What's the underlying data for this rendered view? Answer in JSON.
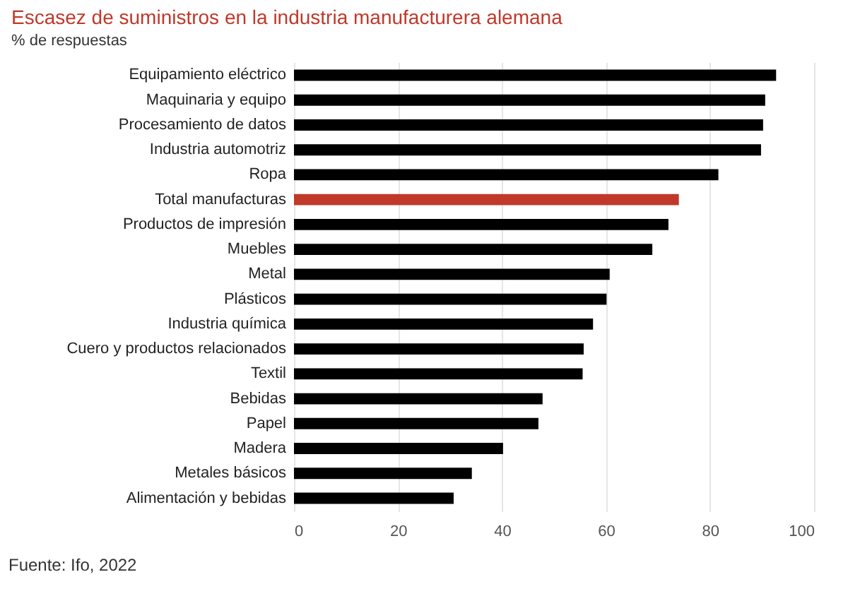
{
  "chart_data": {
    "type": "bar",
    "orientation": "horizontal",
    "title": "Escasez de suministros en la industria manufacturera alemana",
    "subtitle": "% de respuestas",
    "categories": [
      "Equipamiento eléctrico",
      "Maquinaria y equipo",
      "Procesamiento de datos",
      "Industria automotriz",
      "Ropa",
      "Total manufacturas",
      "Productos de impresión",
      "Muebles",
      "Metal",
      "Plásticos",
      "Industria química",
      "Cuero y productos relacionados",
      "Textil",
      "Bebidas",
      "Papel",
      "Madera",
      "Metales básicos",
      "Alimentación y bebidas"
    ],
    "values": [
      92.7,
      90.6,
      90.2,
      89.8,
      81.6,
      74.0,
      72.0,
      68.9,
      60.7,
      60.1,
      57.5,
      55.7,
      55.5,
      47.8,
      47.0,
      40.2,
      34.2,
      30.7
    ],
    "colors": [
      "#000000",
      "#000000",
      "#000000",
      "#000000",
      "#000000",
      "#c0392b",
      "#000000",
      "#000000",
      "#000000",
      "#000000",
      "#000000",
      "#000000",
      "#000000",
      "#000000",
      "#000000",
      "#000000",
      "#000000",
      "#000000"
    ],
    "xlim": [
      0,
      100
    ],
    "xticks": [
      0,
      20,
      40,
      60,
      80,
      100
    ],
    "grid": "x",
    "annotations": [
      "Fuente: Ifo, 2022"
    ]
  }
}
